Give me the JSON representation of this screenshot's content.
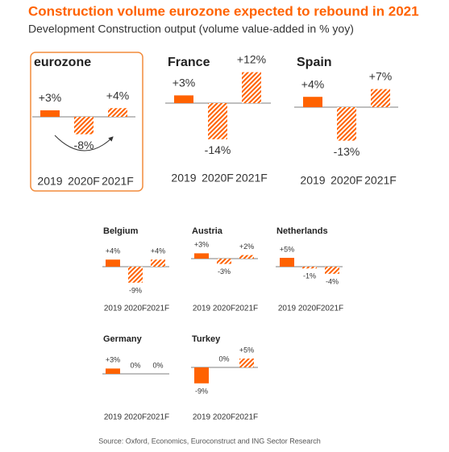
{
  "title": "Construction volume eurozone expected to rebound in 2021",
  "subtitle": "Development Construction output (volume value-added in % yoy)",
  "source": "Source: Oxford, Economics, Euroconstruct and ING Sector Research",
  "chart_data": [
    {
      "type": "bar",
      "title": "eurozone",
      "categories": [
        "2019",
        "2020F",
        "2021F"
      ],
      "values": [
        3,
        -8,
        4
      ],
      "value_labels": [
        "+3%",
        "-8%",
        "+4%"
      ],
      "color": "#ff6200",
      "hatched": [
        false,
        true,
        true
      ]
    },
    {
      "type": "bar",
      "title": "France",
      "categories": [
        "2019",
        "2020F",
        "2021F"
      ],
      "values": [
        3,
        -14,
        12
      ],
      "value_labels": [
        "+3%",
        "-14%",
        "+12%"
      ],
      "color": "#ff6200",
      "hatched": [
        false,
        true,
        true
      ]
    },
    {
      "type": "bar",
      "title": "Spain",
      "categories": [
        "2019",
        "2020F",
        "2021F"
      ],
      "values": [
        4,
        -13,
        7
      ],
      "value_labels": [
        "+4%",
        "-13%",
        "+7%"
      ],
      "color": "#ff6200",
      "hatched": [
        false,
        true,
        true
      ]
    },
    {
      "type": "bar",
      "title": "Belgium",
      "categories": [
        "2019",
        "2020F",
        "2021F"
      ],
      "values": [
        4,
        -9,
        4
      ],
      "value_labels": [
        "+4%",
        "-9%",
        "+4%"
      ],
      "color": "#ff6200",
      "hatched": [
        false,
        true,
        true
      ]
    },
    {
      "type": "bar",
      "title": "Austria",
      "categories": [
        "2019",
        "2020F",
        "2021F"
      ],
      "values": [
        3,
        -3,
        2
      ],
      "value_labels": [
        "+3%",
        "-3%",
        "+2%"
      ],
      "color": "#ff6200",
      "hatched": [
        false,
        true,
        true
      ]
    },
    {
      "type": "bar",
      "title": "Netherlands",
      "categories": [
        "2019",
        "2020F",
        "2021F"
      ],
      "values": [
        5,
        -1,
        -4
      ],
      "value_labels": [
        "+5%",
        "-1%",
        "-4%"
      ],
      "color": "#ff6200",
      "hatched": [
        false,
        true,
        true
      ]
    },
    {
      "type": "bar",
      "title": "Germany",
      "categories": [
        "2019",
        "2020F",
        "2021F"
      ],
      "values": [
        3,
        0,
        0
      ],
      "value_labels": [
        "+3%",
        "0%",
        "0%"
      ],
      "color": "#ff6200",
      "hatched": [
        false,
        true,
        true
      ]
    },
    {
      "type": "bar",
      "title": "Turkey",
      "categories": [
        "2019",
        "2020F",
        "2021F"
      ],
      "values": [
        -9,
        0,
        5
      ],
      "value_labels": [
        "-9%",
        "0%",
        "+5%"
      ],
      "color": "#ff6200",
      "hatched": [
        false,
        true,
        true
      ]
    }
  ]
}
